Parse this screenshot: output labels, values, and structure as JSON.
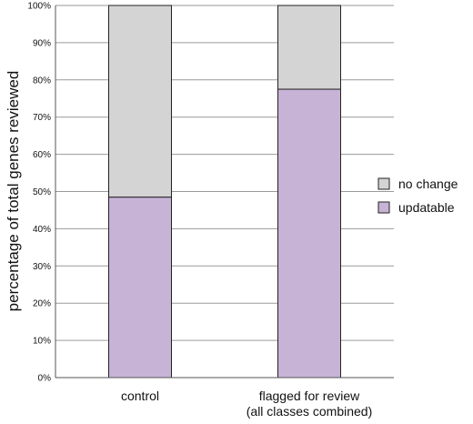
{
  "chart_data": {
    "type": "bar",
    "stacked": true,
    "categories": [
      "control",
      "flagged for review\n(all classes combined)"
    ],
    "series": [
      {
        "name": "updatable",
        "color": "#c6b3d6",
        "values": [
          48.5,
          77.5
        ]
      },
      {
        "name": "no change",
        "color": "#d4d4d4",
        "values": [
          51.5,
          22.5
        ]
      }
    ],
    "ylabel": "percentage of total genes reviewed",
    "xlabel": "",
    "ylim": [
      0,
      100
    ],
    "yticks": [
      "0%",
      "10%",
      "20%",
      "30%",
      "40%",
      "50%",
      "60%",
      "70%",
      "80%",
      "90%",
      "100%"
    ],
    "grid": true,
    "legend": {
      "position": "right",
      "order": [
        "no change",
        "updatable"
      ]
    }
  }
}
